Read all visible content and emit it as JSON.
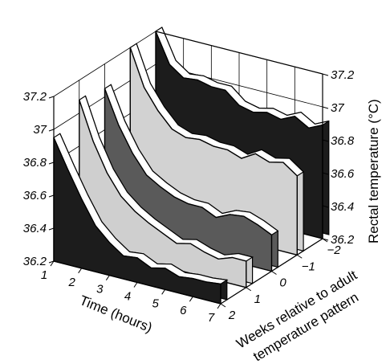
{
  "chart_data": {
    "type": "area",
    "style": "3d-ribbon (waterfall) chart",
    "x_axis": {
      "label": "Time (hours)",
      "ticks": [
        "1",
        "2",
        "3",
        "4",
        "5",
        "6",
        "7"
      ]
    },
    "y_axis": {
      "label_lines": [
        "Weeks relative to adult",
        "temperature pattern"
      ],
      "ticks": [
        "2",
        "1",
        "0",
        "−1",
        "−2"
      ]
    },
    "z_axis": {
      "label": "Rectal temperature (°C)",
      "ticks": [
        "36.2",
        "36.4",
        "36.6",
        "36.8",
        "37",
        "37.2"
      ],
      "range": [
        36.2,
        37.2
      ]
    },
    "x_values": [
      1,
      1.5,
      2,
      2.5,
      3,
      3.5,
      4,
      4.5,
      5,
      5.5,
      6,
      6.5,
      7
    ],
    "series": [
      {
        "week": -2,
        "fill": "#1c1c1c",
        "values": [
          37.2,
          37.02,
          36.96,
          36.97,
          36.95,
          36.95,
          36.88,
          36.86,
          36.88,
          36.86,
          36.9,
          36.85,
          36.89
        ]
      },
      {
        "week": -1,
        "fill": "#d2d2d2",
        "values": [
          37.2,
          36.98,
          36.86,
          36.77,
          36.74,
          36.75,
          36.73,
          36.73,
          36.7,
          36.75,
          36.72,
          36.74,
          36.68
        ]
      },
      {
        "week": 0,
        "fill": "#5a5a5a",
        "values": [
          37.05,
          36.85,
          36.7,
          36.59,
          36.54,
          36.5,
          36.48,
          36.48,
          36.44,
          36.48,
          36.49,
          36.46,
          36.42
        ]
      },
      {
        "week": 1,
        "fill": "#cfcfcf",
        "values": [
          37.08,
          36.85,
          36.68,
          36.56,
          36.49,
          36.44,
          36.4,
          36.36,
          36.38,
          36.35,
          36.33,
          36.36,
          36.36
        ]
      },
      {
        "week": 2,
        "fill": "#1c1c1c",
        "values": [
          36.95,
          36.78,
          36.62,
          36.48,
          36.4,
          36.34,
          36.35,
          36.31,
          36.33,
          36.3,
          36.31,
          36.31,
          36.32
        ]
      }
    ]
  }
}
